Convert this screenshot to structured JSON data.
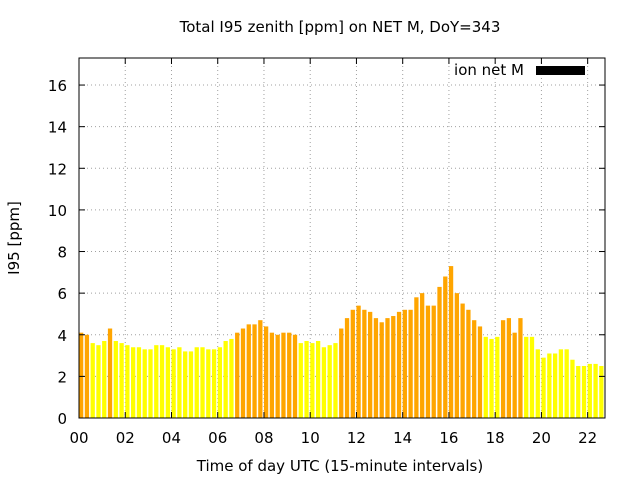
{
  "chart_data": {
    "type": "bar",
    "title": "Total I95 zenith [ppm] on NET M, DoY=343",
    "xlabel": "Time of day UTC (15-minute intervals)",
    "ylabel": "I95 [ppm]",
    "xlim": [
      0,
      22.75
    ],
    "ylim": [
      0,
      17.3
    ],
    "grid": true,
    "legend": {
      "label": "ion net M",
      "color": "#000000",
      "position": "top-right"
    },
    "x_tick_labels": [
      "00",
      "02",
      "04",
      "06",
      "08",
      "10",
      "12",
      "14",
      "16",
      "18",
      "20",
      "22"
    ],
    "x_tick_values": [
      0,
      2,
      4,
      6,
      8,
      10,
      12,
      14,
      16,
      18,
      20,
      22
    ],
    "y_tick_values": [
      0,
      2,
      4,
      6,
      8,
      10,
      12,
      14,
      16
    ],
    "bar_width_hours": 0.25,
    "colors": {
      "low": "#ffff00",
      "medium": "#ffa500"
    },
    "values": [
      4.1,
      4.0,
      3.6,
      3.5,
      3.7,
      4.3,
      3.7,
      3.6,
      3.5,
      3.4,
      3.4,
      3.3,
      3.3,
      3.5,
      3.5,
      3.4,
      3.3,
      3.4,
      3.2,
      3.2,
      3.4,
      3.4,
      3.3,
      3.3,
      3.4,
      3.7,
      3.8,
      4.1,
      4.3,
      4.5,
      4.5,
      4.7,
      4.4,
      4.1,
      4.0,
      4.1,
      4.1,
      4.0,
      3.6,
      3.7,
      3.6,
      3.7,
      3.4,
      3.5,
      3.6,
      4.3,
      4.8,
      5.2,
      5.4,
      5.2,
      5.1,
      4.8,
      4.6,
      4.8,
      4.9,
      5.1,
      5.2,
      5.2,
      5.8,
      6.0,
      5.4,
      5.4,
      6.3,
      6.8,
      7.3,
      6.0,
      5.5,
      5.2,
      4.7,
      4.4,
      3.9,
      3.8,
      3.9,
      4.7,
      4.8,
      4.1,
      4.8,
      3.9,
      3.9,
      3.3,
      2.9,
      3.1,
      3.1,
      3.3,
      3.3,
      2.8,
      2.5,
      2.5,
      2.6,
      2.6,
      2.5
    ],
    "levels": [
      "m",
      "m",
      "l",
      "l",
      "l",
      "m",
      "l",
      "l",
      "l",
      "l",
      "l",
      "l",
      "l",
      "l",
      "l",
      "l",
      "l",
      "l",
      "l",
      "l",
      "l",
      "l",
      "l",
      "l",
      "l",
      "l",
      "l",
      "m",
      "m",
      "m",
      "m",
      "m",
      "m",
      "m",
      "m",
      "m",
      "m",
      "m",
      "l",
      "l",
      "l",
      "l",
      "l",
      "l",
      "l",
      "m",
      "m",
      "m",
      "m",
      "m",
      "m",
      "m",
      "m",
      "m",
      "m",
      "m",
      "m",
      "m",
      "m",
      "m",
      "m",
      "m",
      "m",
      "m",
      "m",
      "m",
      "m",
      "m",
      "m",
      "m",
      "l",
      "l",
      "l",
      "m",
      "m",
      "m",
      "m",
      "l",
      "l",
      "l",
      "l",
      "l",
      "l",
      "l",
      "l",
      "l",
      "l",
      "l",
      "l",
      "l",
      "l"
    ]
  }
}
